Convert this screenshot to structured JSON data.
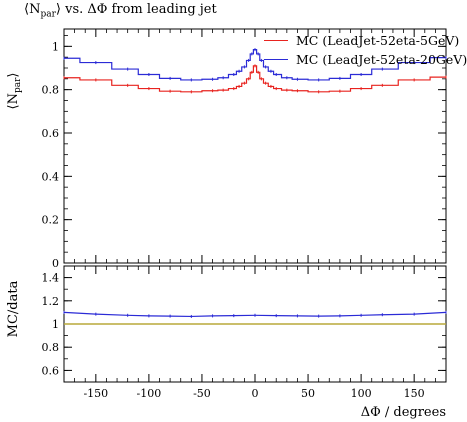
{
  "title": "⟨N_par⟩ vs. ΔΦ from leading jet",
  "chart_data": [
    {
      "type": "line",
      "title": "⟨N_par⟩ vs. ΔΦ from leading jet",
      "xlabel": "ΔΦ / degrees",
      "ylabel": "⟨N_par⟩",
      "xlim": [
        -180,
        180
      ],
      "ylim": [
        0,
        1.08
      ],
      "xticks": [
        "-150",
        "-100",
        "-50",
        "0",
        "50",
        "100",
        "150"
      ],
      "yticks": [
        "0",
        "0.2",
        "0.4",
        "0.6",
        "0.8",
        "1"
      ],
      "legend": "top-right",
      "grid": false,
      "series": [
        {
          "name": "MC (LeadJet-52eta-5GeV)",
          "color": "#e8231f",
          "x": [
            -180,
            -150,
            -120,
            -100,
            -80,
            -60,
            -40,
            -30,
            -20,
            -15,
            -10,
            -6,
            -3,
            0,
            3,
            6,
            10,
            15,
            20,
            30,
            40,
            60,
            80,
            100,
            120,
            150,
            180
          ],
          "values": [
            0.855,
            0.845,
            0.82,
            0.805,
            0.793,
            0.79,
            0.795,
            0.798,
            0.805,
            0.815,
            0.83,
            0.85,
            0.88,
            0.91,
            0.88,
            0.85,
            0.83,
            0.815,
            0.805,
            0.798,
            0.795,
            0.79,
            0.793,
            0.805,
            0.82,
            0.845,
            0.858
          ]
        },
        {
          "name": "MC (LeadJet-52eta-20GeV)",
          "color": "#2b2bd6",
          "x": [
            -180,
            -150,
            -120,
            -100,
            -80,
            -60,
            -40,
            -30,
            -20,
            -15,
            -10,
            -6,
            -3,
            0,
            3,
            6,
            10,
            15,
            20,
            30,
            40,
            60,
            80,
            100,
            120,
            150,
            180
          ],
          "values": [
            0.945,
            0.925,
            0.895,
            0.87,
            0.852,
            0.845,
            0.848,
            0.855,
            0.87,
            0.885,
            0.905,
            0.935,
            0.965,
            0.985,
            0.965,
            0.935,
            0.905,
            0.885,
            0.87,
            0.855,
            0.848,
            0.845,
            0.852,
            0.87,
            0.895,
            0.925,
            0.948
          ]
        }
      ]
    },
    {
      "type": "line",
      "xlabel": "ΔΦ / degrees",
      "ylabel": "MC/data",
      "xlim": [
        -180,
        180
      ],
      "ylim": [
        0.5,
        1.5
      ],
      "xticks": [
        "-150",
        "-100",
        "-50",
        "0",
        "50",
        "100",
        "150"
      ],
      "yticks": [
        "0.6",
        "0.8",
        "1",
        "1.2",
        "1.4"
      ],
      "grid": false,
      "reference_line": {
        "y": 1.0,
        "color": "#b8a83a"
      },
      "series": [
        {
          "name": "MC (LeadJet-52eta-20GeV)",
          "color": "#2b2bd6",
          "x": [
            -180,
            -150,
            -120,
            -100,
            -80,
            -60,
            -40,
            -20,
            0,
            20,
            40,
            60,
            80,
            100,
            120,
            150,
            180
          ],
          "values": [
            1.1,
            1.085,
            1.075,
            1.07,
            1.068,
            1.065,
            1.07,
            1.072,
            1.075,
            1.072,
            1.07,
            1.068,
            1.07,
            1.075,
            1.08,
            1.085,
            1.1
          ]
        }
      ]
    }
  ]
}
